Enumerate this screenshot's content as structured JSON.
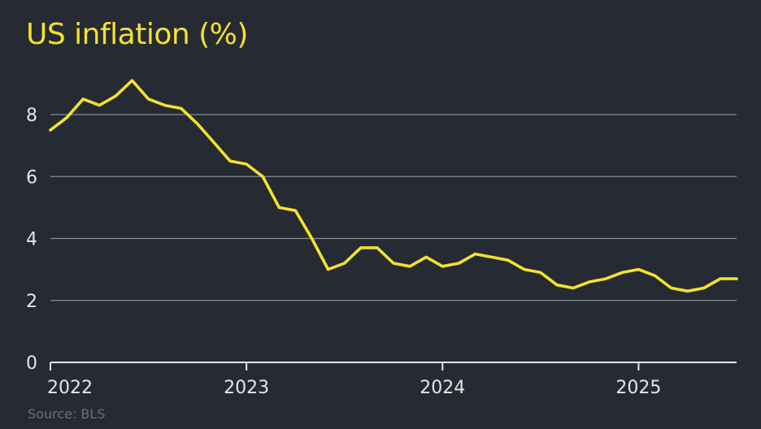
{
  "colors": {
    "background": "#262a33",
    "line": "#f4e22d",
    "grid": "#8a8e95",
    "text": "#e6e6e6",
    "source": "#6b7079"
  },
  "chart_data": {
    "type": "line",
    "title": "US inflation (%)",
    "source": "Source: BLS",
    "xlabel": "",
    "ylabel": "",
    "xlim": [
      "2022-01",
      "2025-07"
    ],
    "ylim": [
      0,
      9.6
    ],
    "yticks": [
      0,
      2,
      4,
      6,
      8
    ],
    "xticks": [
      {
        "label": "2022",
        "date": "2022-01"
      },
      {
        "label": "2023",
        "date": "2023-01"
      },
      {
        "label": "2024",
        "date": "2024-01"
      },
      {
        "label": "2025",
        "date": "2025-01"
      }
    ],
    "grid": true,
    "legend": "none",
    "series": [
      {
        "x": [
          "2022-01",
          "2022-02",
          "2022-03",
          "2022-04",
          "2022-05",
          "2022-06",
          "2022-07",
          "2022-08",
          "2022-09",
          "2022-10",
          "2022-11",
          "2022-12",
          "2023-01",
          "2023-02",
          "2023-03",
          "2023-04",
          "2023-05",
          "2023-06",
          "2023-07",
          "2023-08",
          "2023-09",
          "2023-10",
          "2023-11",
          "2023-12",
          "2024-01",
          "2024-02",
          "2024-03",
          "2024-04",
          "2024-05",
          "2024-06",
          "2024-07",
          "2024-08",
          "2024-09",
          "2024-10",
          "2024-11",
          "2024-12",
          "2025-01",
          "2025-02",
          "2025-03",
          "2025-04",
          "2025-05",
          "2025-06",
          "2025-07"
        ],
        "values": [
          7.5,
          7.9,
          8.5,
          8.3,
          8.6,
          9.1,
          8.5,
          8.3,
          8.2,
          7.7,
          7.1,
          6.5,
          6.4,
          6.0,
          5.0,
          4.9,
          4.0,
          3.0,
          3.2,
          3.7,
          3.7,
          3.2,
          3.1,
          3.4,
          3.1,
          3.2,
          3.5,
          3.4,
          3.3,
          3.0,
          2.9,
          2.5,
          2.4,
          2.6,
          2.7,
          2.9,
          3.0,
          2.8,
          2.4,
          2.3,
          2.4,
          2.7,
          2.7
        ]
      }
    ]
  }
}
